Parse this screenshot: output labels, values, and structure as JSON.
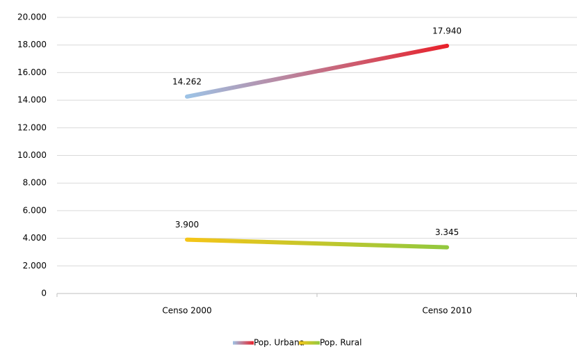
{
  "chart_data": {
    "type": "line",
    "categories": [
      "Censo 2000",
      "Censo 2010"
    ],
    "series": [
      {
        "name": "Pop. Urbana",
        "color": [
          "#9dc3e6",
          "#e8212b"
        ],
        "values": [
          14262,
          17940
        ],
        "value_labels": [
          "14.262",
          "17.940"
        ]
      },
      {
        "name": "Pop. Rural",
        "color": [
          "#f5c518",
          "#92c83e"
        ],
        "values": [
          3900,
          3345
        ],
        "value_labels": [
          "3.900",
          "3.345"
        ]
      }
    ],
    "ylim": [
      0,
      20000
    ],
    "yticks": [
      {
        "value": 0,
        "label": "0"
      },
      {
        "value": 2000,
        "label": "2.000"
      },
      {
        "value": 4000,
        "label": "4.000"
      },
      {
        "value": 6000,
        "label": "6.000"
      },
      {
        "value": 8000,
        "label": "8.000"
      },
      {
        "value": 10000,
        "label": "10.000"
      },
      {
        "value": 12000,
        "label": "12.000"
      },
      {
        "value": 14000,
        "label": "14.000"
      },
      {
        "value": 16000,
        "label": "16.000"
      },
      {
        "value": 18000,
        "label": "18.000"
      },
      {
        "value": 20000,
        "label": "20.000"
      }
    ],
    "grid": true,
    "legend": "bottom"
  }
}
